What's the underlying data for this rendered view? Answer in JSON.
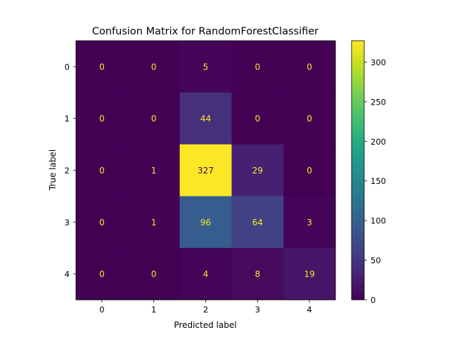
{
  "chart_data": {
    "type": "heatmap",
    "title": "Confusion Matrix for RandomForestClassifier",
    "xlabel": "Predicted label",
    "ylabel": "True label",
    "x_categories": [
      "0",
      "1",
      "2",
      "3",
      "4"
    ],
    "y_categories": [
      "0",
      "1",
      "2",
      "3",
      "4"
    ],
    "matrix": [
      [
        0,
        0,
        5,
        0,
        0
      ],
      [
        0,
        0,
        44,
        0,
        0
      ],
      [
        0,
        1,
        327,
        29,
        0
      ],
      [
        0,
        1,
        96,
        64,
        3
      ],
      [
        0,
        0,
        4,
        8,
        19
      ]
    ],
    "colormap": "viridis",
    "vmin": 0,
    "vmax": 327,
    "colorbar_ticks": [
      "0",
      "50",
      "100",
      "150",
      "200",
      "250",
      "300"
    ],
    "colorbar_tick_values": [
      0,
      50,
      100,
      150,
      200,
      250,
      300
    ],
    "annotation_color_dark": "#fde725",
    "annotation_color_light": "#440154"
  }
}
